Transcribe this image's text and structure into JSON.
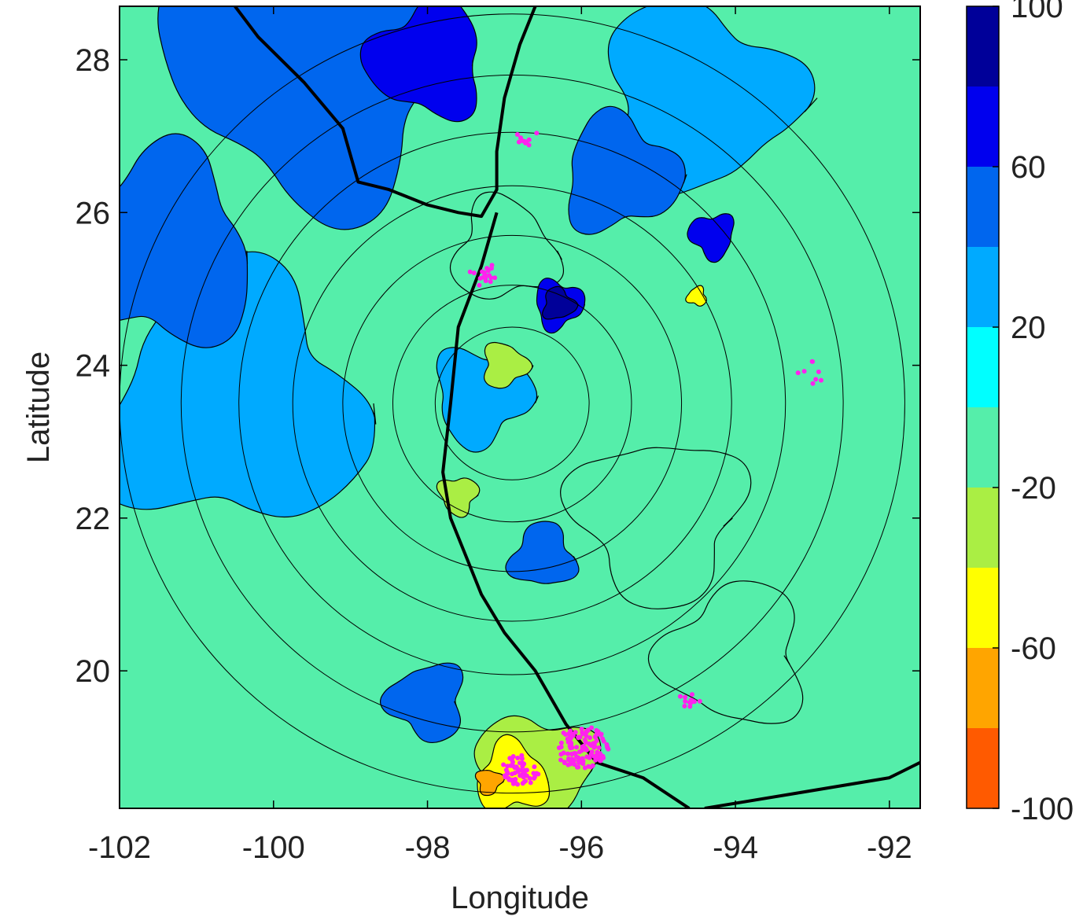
{
  "chart_data": {
    "type": "heatmap",
    "title": "",
    "xlabel": "Longitude",
    "ylabel": "Latitude",
    "xlim": [
      -102,
      -91.6
    ],
    "ylim": [
      18.2,
      28.7
    ],
    "x_ticks": [
      -102,
      -100,
      -98,
      -96,
      -94,
      -92
    ],
    "y_ticks": [
      20,
      22,
      24,
      26,
      28
    ],
    "x_tick_labels": [
      "-102",
      "-100",
      "-98",
      "-96",
      "-94",
      "-92"
    ],
    "y_tick_labels": [
      "20",
      "22",
      "24",
      "26",
      "28"
    ],
    "grid": false,
    "colorbar": {
      "placement": "right",
      "range": [
        -100,
        100
      ],
      "levels": [
        -100,
        -80,
        -60,
        -40,
        -20,
        0,
        20,
        40,
        60,
        80,
        100
      ],
      "colors": [
        "#ff5a00",
        "#ffa500",
        "#ffff00",
        "#aaee44",
        "#55eeaa",
        "#00ffff",
        "#00aaff",
        "#0066ee",
        "#0000ee",
        "#000099"
      ],
      "tick_values": [
        100,
        60,
        20,
        -20,
        -60,
        -100
      ],
      "tick_labels": [
        "100",
        "60",
        "20",
        "-20",
        "-60",
        "-100"
      ]
    },
    "range_rings": {
      "center": [
        -96.9,
        23.5
      ],
      "radii_deg": [
        1.0,
        1.55,
        2.2,
        2.85,
        3.55,
        4.3,
        5.1
      ]
    },
    "field_features": [
      {
        "level": 80,
        "lon": -96.3,
        "lat": 24.8,
        "r": 0.25
      },
      {
        "level": 60,
        "lon": -96.3,
        "lat": 24.8,
        "r": 0.38
      },
      {
        "level": 60,
        "lon": -98.0,
        "lat": 28.0,
        "r": 0.9
      },
      {
        "level": 60,
        "lon": -94.3,
        "lat": 25.7,
        "r": 0.35
      },
      {
        "level": 40,
        "lon": -99.5,
        "lat": 28.0,
        "r": 2.2
      },
      {
        "level": 40,
        "lon": -101.5,
        "lat": 25.5,
        "r": 1.5
      },
      {
        "level": 40,
        "lon": -95.5,
        "lat": 26.5,
        "r": 0.9
      },
      {
        "level": 40,
        "lon": -98.0,
        "lat": 19.6,
        "r": 0.6
      },
      {
        "level": 40,
        "lon": -96.5,
        "lat": 21.5,
        "r": 0.5
      },
      {
        "level": 20,
        "lon": -100.5,
        "lat": 23.5,
        "r": 2.0
      },
      {
        "level": 20,
        "lon": -94.5,
        "lat": 27.5,
        "r": 1.5
      },
      {
        "level": 20,
        "lon": -97.3,
        "lat": 23.6,
        "r": 0.75
      },
      {
        "level": -20,
        "lon": -95.0,
        "lat": 22.0,
        "r": 1.3
      },
      {
        "level": -20,
        "lon": -97.0,
        "lat": 25.5,
        "r": 0.8
      },
      {
        "level": -20,
        "lon": -94.0,
        "lat": 20.2,
        "r": 1.1
      },
      {
        "level": -40,
        "lon": -97.0,
        "lat": 24.0,
        "r": 0.35
      },
      {
        "level": -40,
        "lon": -97.6,
        "lat": 22.3,
        "r": 0.3
      },
      {
        "level": -40,
        "lon": -96.6,
        "lat": 18.7,
        "r": 0.9
      },
      {
        "level": -60,
        "lon": -96.9,
        "lat": 18.6,
        "r": 0.55
      },
      {
        "level": -60,
        "lon": -94.5,
        "lat": 24.9,
        "r": 0.15
      },
      {
        "level": -80,
        "lon": -97.2,
        "lat": 18.55,
        "r": 0.2
      }
    ],
    "coastline": [
      [
        -100.5,
        28.7
      ],
      [
        -100.2,
        28.3
      ],
      [
        -99.6,
        27.7
      ],
      [
        -99.1,
        27.1
      ],
      [
        -98.9,
        26.4
      ],
      [
        -98.5,
        26.3
      ],
      [
        -98.0,
        26.1
      ],
      [
        -97.6,
        26.0
      ],
      [
        -97.3,
        25.95
      ],
      [
        -97.1,
        26.3
      ],
      [
        -97.1,
        26.8
      ],
      [
        -97.0,
        27.5
      ],
      [
        -96.8,
        28.2
      ],
      [
        -96.6,
        28.7
      ]
    ],
    "coastline2": [
      [
        -97.1,
        26.0
      ],
      [
        -97.3,
        25.3
      ],
      [
        -97.6,
        24.5
      ],
      [
        -97.7,
        23.5
      ],
      [
        -97.8,
        22.6
      ],
      [
        -97.7,
        22.0
      ],
      [
        -97.5,
        21.5
      ],
      [
        -97.3,
        21.0
      ],
      [
        -97.0,
        20.5
      ],
      [
        -96.6,
        20.0
      ],
      [
        -96.2,
        19.3
      ],
      [
        -95.8,
        18.8
      ],
      [
        -95.2,
        18.6
      ],
      [
        -94.6,
        18.2
      ]
    ],
    "coastline3": [
      [
        -94.4,
        18.2
      ],
      [
        -93.8,
        18.3
      ],
      [
        -93.2,
        18.4
      ],
      [
        -92.6,
        18.5
      ],
      [
        -92.0,
        18.6
      ],
      [
        -91.6,
        18.8
      ]
    ],
    "lightning_clusters": [
      {
        "lon": -96.0,
        "lat": 19.0,
        "spread": 0.35,
        "count": 120
      },
      {
        "lon": -96.8,
        "lat": 18.7,
        "spread": 0.25,
        "count": 60
      },
      {
        "lon": -97.3,
        "lat": 25.2,
        "spread": 0.2,
        "count": 18
      },
      {
        "lon": -96.7,
        "lat": 27.0,
        "spread": 0.15,
        "count": 10
      },
      {
        "lon": -94.6,
        "lat": 19.6,
        "spread": 0.15,
        "count": 12
      },
      {
        "lon": -93.0,
        "lat": 23.9,
        "spread": 0.2,
        "count": 8
      }
    ]
  }
}
